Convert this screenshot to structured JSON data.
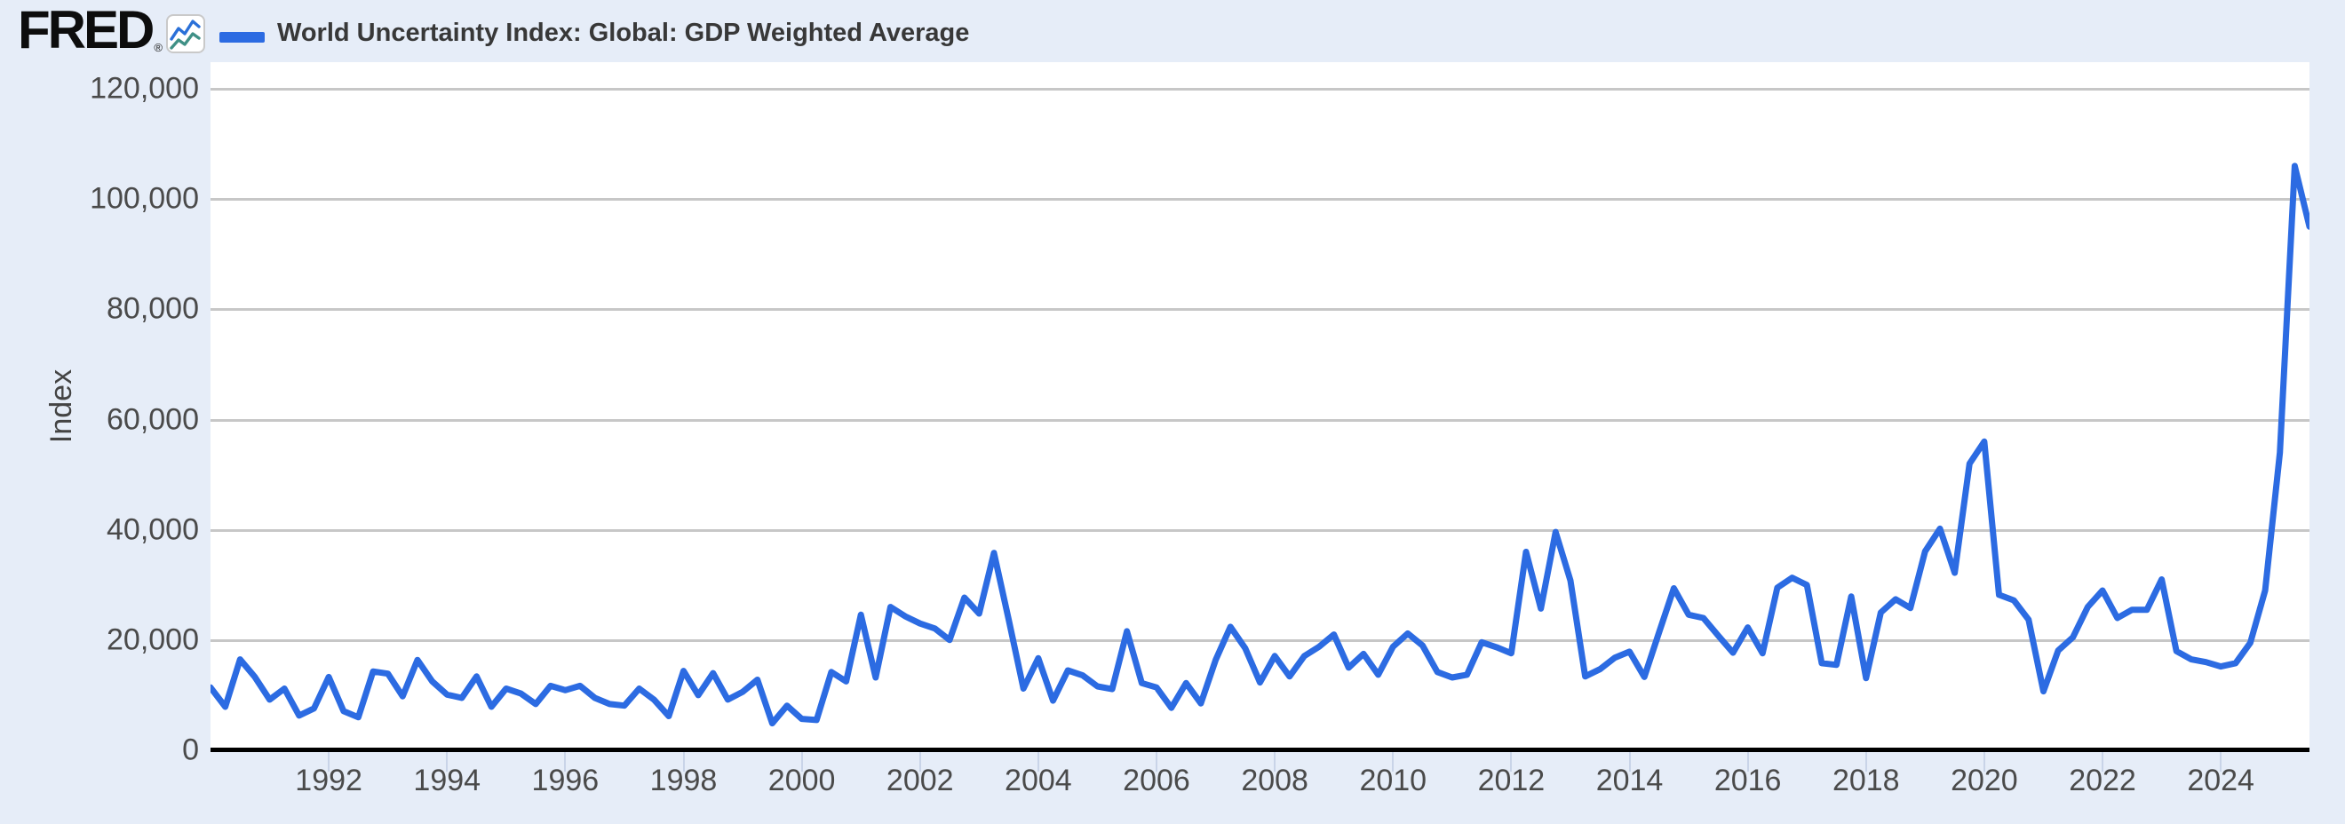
{
  "header": {
    "logo_text": "FRED",
    "registered_mark": "®",
    "legend_label": "World Uncertainty Index: Global: GDP Weighted Average"
  },
  "y_axis": {
    "title": "Index",
    "tick_labels": [
      "0",
      "20,000",
      "40,000",
      "60,000",
      "80,000",
      "100,000",
      "120,000"
    ],
    "tick_values": [
      0,
      20000,
      40000,
      60000,
      80000,
      100000,
      120000
    ]
  },
  "x_axis": {
    "tick_years": [
      1992,
      1994,
      1996,
      1998,
      2000,
      2002,
      2004,
      2006,
      2008,
      2010,
      2012,
      2014,
      2016,
      2018,
      2020,
      2022,
      2024
    ]
  },
  "chart_data": {
    "type": "line",
    "title": "World Uncertainty Index: Global: GDP Weighted Average",
    "ylabel": "Index",
    "xlabel": "",
    "frequency": "quarterly",
    "start": "1990Q1",
    "end": "2025Q3",
    "ylim": [
      0,
      120000
    ],
    "grid": "horizontal",
    "legend_position": "top-left",
    "values": [
      11400,
      7900,
      16500,
      13300,
      9200,
      11200,
      6300,
      7600,
      13300,
      7100,
      6000,
      14300,
      13900,
      9800,
      16400,
      12500,
      10100,
      9500,
      13400,
      7900,
      11200,
      10300,
      8400,
      11700,
      10900,
      11700,
      9500,
      8400,
      8100,
      11200,
      9200,
      6200,
      14400,
      10000,
      14000,
      9200,
      10600,
      12800,
      4900,
      8100,
      5700,
      5500,
      14200,
      12500,
      24600,
      13200,
      26000,
      24300,
      23000,
      22100,
      20000,
      27700,
      24800,
      35800,
      23700,
      11200,
      16700,
      9000,
      14500,
      13600,
      11600,
      11100,
      21600,
      12200,
      11400,
      7700,
      12200,
      8500,
      16400,
      22400,
      18500,
      12300,
      17100,
      13400,
      17100,
      18800,
      21000,
      15000,
      17500,
      13700,
      18800,
      21200,
      19000,
      14200,
      13200,
      13700,
      19600,
      18700,
      17600,
      36000,
      25700,
      39600,
      30800,
      13400,
      14700,
      16800,
      17900,
      13300,
      21400,
      29400,
      24600,
      24000,
      20800,
      17700,
      22300,
      17600,
      29500,
      31300,
      30000,
      15800,
      15500,
      27900,
      13100,
      25000,
      27400,
      25800,
      36100,
      40200,
      32200,
      52000,
      56000,
      28200,
      27200,
      23700,
      10700,
      18100,
      20500,
      26000,
      29000,
      24000,
      25500,
      25500,
      31000,
      18000,
      16500,
      16000,
      15200,
      15800,
      19500,
      29000,
      54000,
      106000,
      95000
    ]
  },
  "colors": {
    "background": "#e6edf8",
    "plot_background": "#ffffff",
    "line": "#2c6be2",
    "gridline": "#c7c7c7",
    "axis_line": "#000000",
    "label_text": "#4a4a4a",
    "title_text": "#383838",
    "icon_blue": "#2a70d8",
    "icon_teal": "#3f9086"
  }
}
